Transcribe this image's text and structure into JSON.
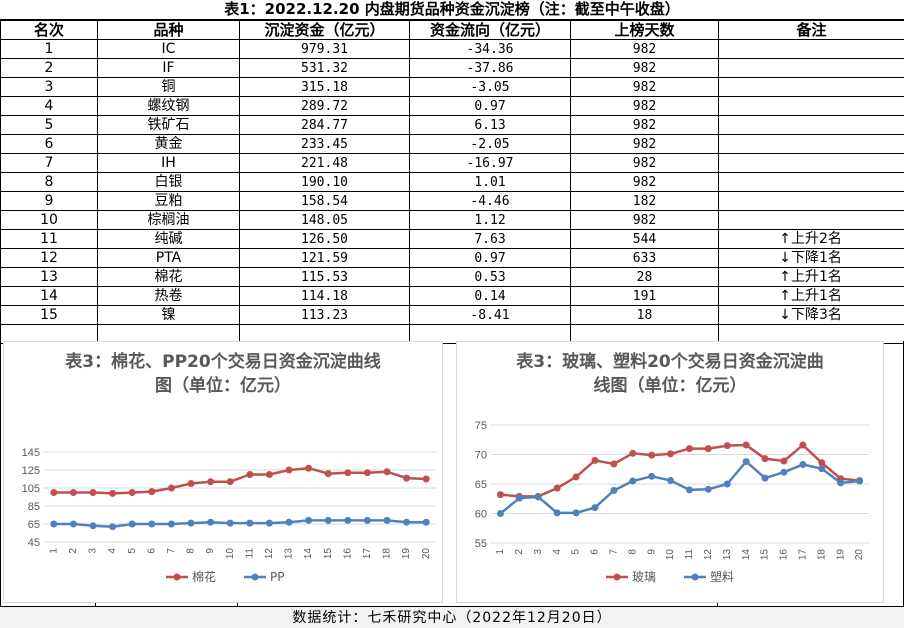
{
  "title": "表1：2022.12.20 内盘期货品种资金沉淀榜（注：截至中午收盘）",
  "table": {
    "headers": [
      "名次",
      "品种",
      "沉淀资金（亿元）",
      "资金流向（亿元）",
      "上榜天数",
      "备注"
    ],
    "rows": [
      {
        "rank": "1",
        "name": "IC",
        "fund": "979.31",
        "flow": "-34.36",
        "days": "982",
        "arrow": "",
        "note": ""
      },
      {
        "rank": "2",
        "name": "IF",
        "fund": "531.32",
        "flow": "-37.86",
        "days": "982",
        "arrow": "",
        "note": ""
      },
      {
        "rank": "3",
        "name": "铜",
        "fund": "315.18",
        "flow": "-3.05",
        "days": "982",
        "arrow": "",
        "note": ""
      },
      {
        "rank": "4",
        "name": "螺纹钢",
        "fund": "289.72",
        "flow": "0.97",
        "days": "982",
        "arrow": "",
        "note": ""
      },
      {
        "rank": "5",
        "name": "铁矿石",
        "fund": "284.77",
        "flow": "6.13",
        "days": "982",
        "arrow": "",
        "note": ""
      },
      {
        "rank": "6",
        "name": "黄金",
        "fund": "233.45",
        "flow": "-2.05",
        "days": "982",
        "arrow": "",
        "note": ""
      },
      {
        "rank": "7",
        "name": "IH",
        "fund": "221.48",
        "flow": "-16.97",
        "days": "982",
        "arrow": "",
        "note": ""
      },
      {
        "rank": "8",
        "name": "白银",
        "fund": "190.10",
        "flow": "1.01",
        "days": "982",
        "arrow": "",
        "note": ""
      },
      {
        "rank": "9",
        "name": "豆粕",
        "fund": "158.54",
        "flow": "-4.46",
        "days": "182",
        "arrow": "",
        "note": ""
      },
      {
        "rank": "10",
        "name": "棕榈油",
        "fund": "148.05",
        "flow": "1.12",
        "days": "982",
        "arrow": "",
        "note": ""
      },
      {
        "rank": "11",
        "name": "纯碱",
        "fund": "126.50",
        "flow": "7.63",
        "days": "544",
        "arrow": "↑",
        "note": "上升2名"
      },
      {
        "rank": "12",
        "name": "PTA",
        "fund": "121.59",
        "flow": "0.97",
        "days": "633",
        "arrow": "↓",
        "note": "下降1名"
      },
      {
        "rank": "13",
        "name": "棉花",
        "fund": "115.53",
        "flow": "0.53",
        "days": "28",
        "arrow": "↑",
        "note": "上升1名"
      },
      {
        "rank": "14",
        "name": "热卷",
        "fund": "114.18",
        "flow": "0.14",
        "days": "191",
        "arrow": "↑",
        "note": "上升1名"
      },
      {
        "rank": "15",
        "name": "镍",
        "fund": "113.23",
        "flow": "-8.41",
        "days": "18",
        "arrow": "↓",
        "note": "下降3名"
      }
    ]
  },
  "chart_data": [
    {
      "type": "line",
      "title": "表3：棉花、PP20个交易日资金沉淀曲线图（单位：亿元）",
      "title_lines": [
        "表3：棉花、PP20个交易日资金沉淀曲线",
        "图（单位：亿元）"
      ],
      "x": [
        "1",
        "2",
        "3",
        "4",
        "5",
        "6",
        "7",
        "8",
        "9",
        "10",
        "11",
        "12",
        "13",
        "14",
        "15",
        "16",
        "17",
        "18",
        "19",
        "20"
      ],
      "ylim": [
        45,
        145
      ],
      "yticks": [
        45,
        65,
        85,
        105,
        125,
        145
      ],
      "grid": true,
      "legend": "bottom",
      "series": [
        {
          "name": "棉花",
          "color": "#C0504D",
          "values": [
            100,
            100,
            100,
            99,
            100,
            101,
            105,
            110,
            112,
            112,
            120,
            120,
            125,
            127,
            121,
            122,
            122,
            123,
            116,
            115
          ]
        },
        {
          "name": "PP",
          "color": "#4F81BD",
          "values": [
            65,
            65,
            63,
            62,
            65,
            65,
            65,
            66,
            67,
            66,
            66,
            66,
            67,
            69,
            69,
            69,
            69,
            69,
            67,
            67
          ]
        }
      ]
    },
    {
      "type": "line",
      "title": "表3：玻璃、塑料20个交易日资金沉淀曲线图（单位：亿元）",
      "title_lines": [
        "表3：玻璃、塑料20个交易日资金沉淀曲",
        "线图（单位：亿元）"
      ],
      "x": [
        "1",
        "2",
        "3",
        "4",
        "5",
        "6",
        "7",
        "8",
        "9",
        "10",
        "11",
        "12",
        "13",
        "14",
        "15",
        "16",
        "17",
        "18",
        "19",
        "20"
      ],
      "ylim": [
        55,
        75
      ],
      "yticks": [
        55,
        60,
        65,
        70,
        75
      ],
      "grid": true,
      "legend": "bottom",
      "series": [
        {
          "name": "玻璃",
          "color": "#C0504D",
          "values": [
            63.2,
            62.9,
            62.9,
            64.3,
            66.2,
            69,
            68.4,
            70.2,
            69.9,
            70.1,
            71,
            71,
            71.5,
            71.6,
            69.3,
            68.9,
            71.6,
            68.6,
            65.9,
            65.6
          ]
        },
        {
          "name": "塑料",
          "color": "#4F81BD",
          "values": [
            60,
            62.6,
            62.8,
            60.1,
            60.1,
            61,
            63.9,
            65.5,
            66.3,
            65.6,
            64,
            64.1,
            65,
            68.8,
            66,
            67,
            68.3,
            67.6,
            65.2,
            65.5
          ]
        }
      ]
    }
  ],
  "footer": "数据统计：七禾研究中心（2022年12月20日）"
}
